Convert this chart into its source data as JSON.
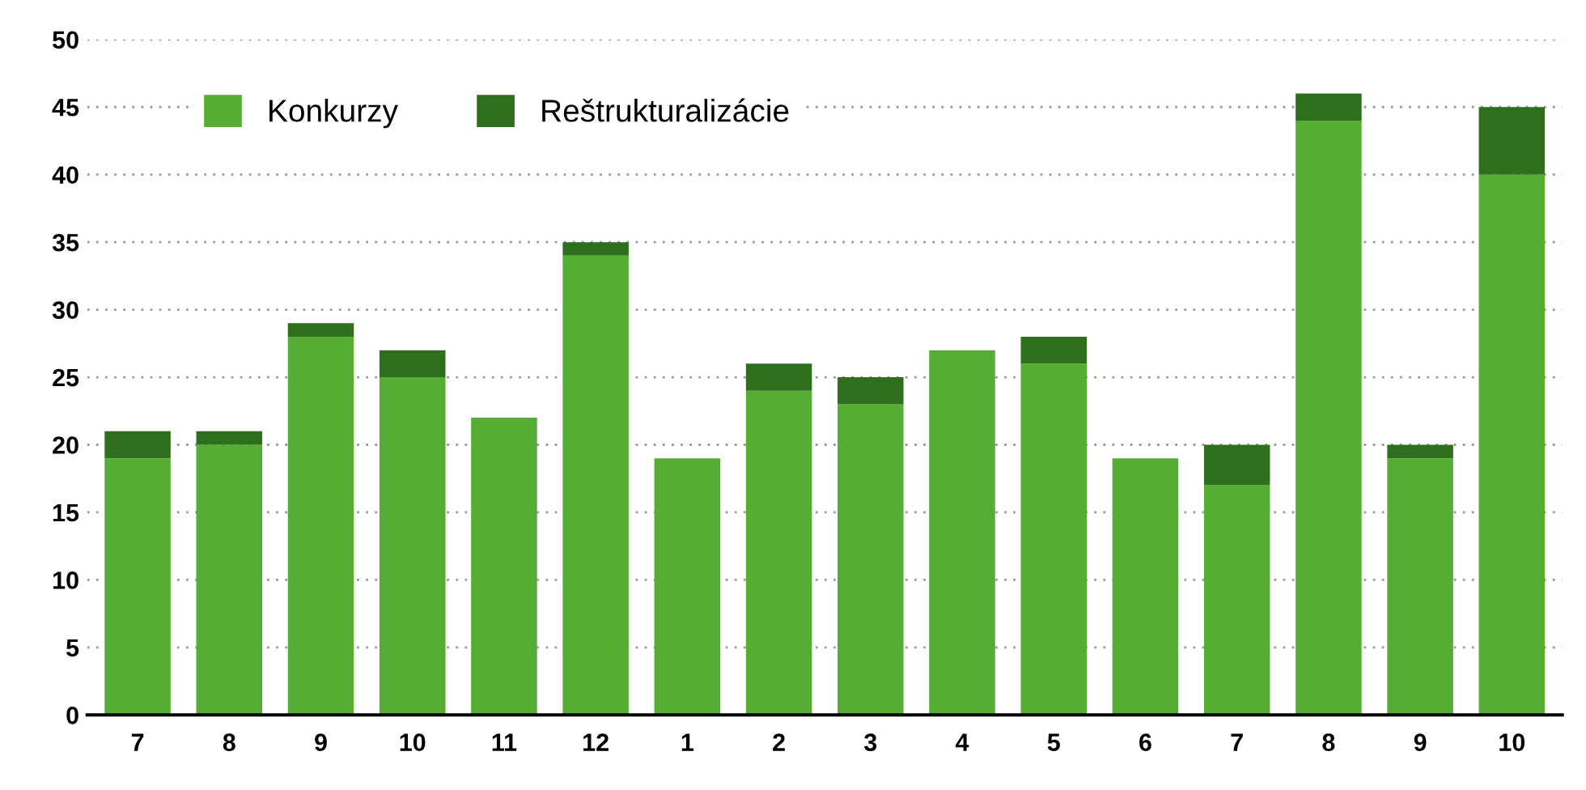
{
  "chart_data": {
    "type": "bar",
    "stacked": true,
    "categories": [
      "7",
      "8",
      "9",
      "10",
      "11",
      "12",
      "1",
      "2",
      "3",
      "4",
      "5",
      "6",
      "7",
      "8",
      "9",
      "10"
    ],
    "series": [
      {
        "name": "Konkurzy",
        "color": "#55ae33",
        "values": [
          19,
          20,
          28,
          25,
          22,
          34,
          19,
          24,
          23,
          27,
          26,
          19,
          17,
          44,
          19,
          40
        ]
      },
      {
        "name": "Reštrukturalizácie",
        "color": "#2e6f1e",
        "values": [
          2,
          1,
          1,
          2,
          0,
          1,
          0,
          2,
          2,
          0,
          2,
          0,
          3,
          2,
          1,
          5
        ]
      }
    ],
    "ylim": [
      0,
      50
    ],
    "yticks": [
      0,
      5,
      10,
      15,
      20,
      25,
      30,
      35,
      40,
      45,
      50
    ],
    "grid": "y",
    "legend": "top left"
  }
}
